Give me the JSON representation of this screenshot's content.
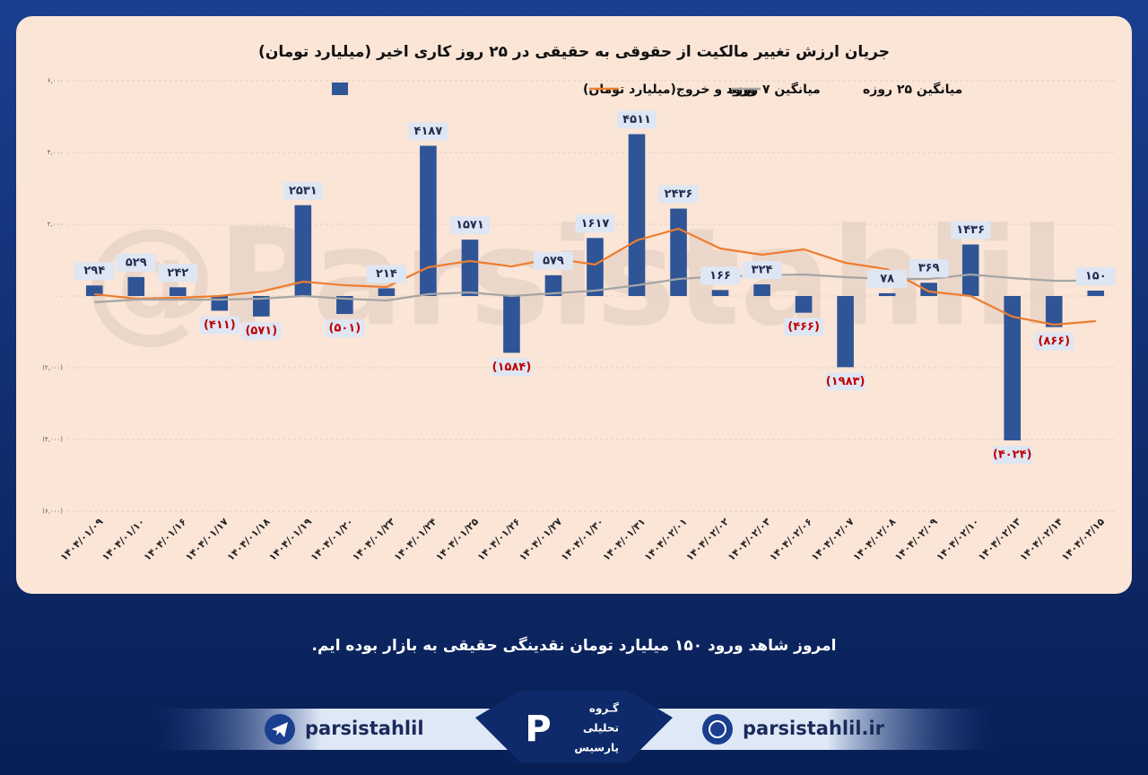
{
  "chart_data": {
    "type": "bar",
    "title": "جریان ارزش تغییر مالکیت از حقوقی به حقیقی در ۲۵ روز کاری اخیر (میلیارد تومان)",
    "categories": [
      "۱۴۰۴/۰۱/۰۹",
      "۱۴۰۴/۰۱/۱۰",
      "۱۴۰۴/۰۱/۱۶",
      "۱۴۰۴/۰۱/۱۷",
      "۱۴۰۴/۰۱/۱۸",
      "۱۴۰۴/۰۱/۱۹",
      "۱۴۰۴/۰۱/۲۰",
      "۱۴۰۴/۰۱/۲۳",
      "۱۴۰۴/۰۱/۲۴",
      "۱۴۰۴/۰۱/۲۵",
      "۱۴۰۴/۰۱/۲۶",
      "۱۴۰۴/۰۱/۲۷",
      "۱۴۰۴/۰۱/۳۰",
      "۱۴۰۴/۰۱/۳۱",
      "۱۴۰۴/۰۲/۰۱",
      "۱۴۰۴/۰۲/۰۲",
      "۱۴۰۴/۰۲/۰۳",
      "۱۴۰۴/۰۲/۰۶",
      "۱۴۰۴/۰۲/۰۷",
      "۱۴۰۴/۰۲/۰۸",
      "۱۴۰۴/۰۲/۰۹",
      "۱۴۰۴/۰۲/۱۰",
      "۱۴۰۴/۰۲/۱۳",
      "۱۴۰۴/۰۲/۱۴",
      "۱۴۰۴/۰۲/۱۵"
    ],
    "series": [
      {
        "name": "ورود و خروج(میلیارد تومان)",
        "type": "bar",
        "color": "#2f5597",
        "values": [
          294,
          529,
          242,
          -411,
          -571,
          2531,
          -501,
          214,
          4187,
          1571,
          -1584,
          579,
          1617,
          4511,
          2436,
          166,
          324,
          -466,
          -1983,
          78,
          369,
          1436,
          -4024,
          -866,
          150
        ],
        "value_labels": [
          "۲۹۴",
          "۵۲۹",
          "۲۴۲",
          "(۴۱۱)",
          "(۵۷۱)",
          "۲۵۳۱",
          "(۵۰۱)",
          "۲۱۴",
          "۴۱۸۷",
          "۱۵۷۱",
          "(۱۵۸۴)",
          "۵۷۹",
          "۱۶۱۷",
          "۴۵۱۱",
          "۲۴۳۶",
          "۱۶۶",
          "۳۲۴",
          "(۴۶۶)",
          "(۱۹۸۳)",
          "۷۸",
          "۳۶۹",
          "۱۴۳۶",
          "(۴۰۲۴)",
          "(۸۶۶)",
          "۱۵۰"
        ]
      },
      {
        "name": "میانگین ۷ روزه",
        "type": "line",
        "color": "#ed7d31",
        "values": [
          50,
          -75,
          -50,
          0,
          125,
          400,
          300,
          250,
          800,
          975,
          825,
          1050,
          875,
          1550,
          1875,
          1325,
          1150,
          1300,
          925,
          750,
          125,
          0,
          -575,
          -800,
          -700
        ]
      },
      {
        "name": "میانگین ۲۵ روزه",
        "type": "line",
        "color": "#a5a5a5",
        "values": [
          -175,
          -100,
          -100,
          -100,
          -75,
          0,
          -75,
          -125,
          50,
          100,
          0,
          75,
          150,
          300,
          475,
          550,
          575,
          600,
          525,
          475,
          475,
          600,
          500,
          425,
          425
        ]
      }
    ],
    "ylim": [
      -6000,
      6000
    ],
    "yticks": [
      {
        "value": 6000,
        "label": "۶,۰۰۰"
      },
      {
        "value": 4000,
        "label": "۴,۰۰۰"
      },
      {
        "value": 2000,
        "label": "۲,۰۰۰"
      },
      {
        "value": 0,
        "label": "۰"
      },
      {
        "value": -2000,
        "label": "(۲,۰۰۰)"
      },
      {
        "value": -4000,
        "label": "(۴,۰۰۰)"
      },
      {
        "value": -6000,
        "label": "(۶,۰۰۰)"
      }
    ],
    "grid": true,
    "negative_label_color": "#c00000",
    "watermark": "@Parsistahlil"
  },
  "message": "امروز شاهد ورود ۱۵۰ میلیارد تومان نقدینگی حقیقی به بازار بوده ایم.",
  "footer": {
    "telegram": "parsistahlil",
    "website": "parsistahlil.ir",
    "logo": [
      "گـروه",
      "تحلیلی",
      "پارسیس"
    ]
  }
}
